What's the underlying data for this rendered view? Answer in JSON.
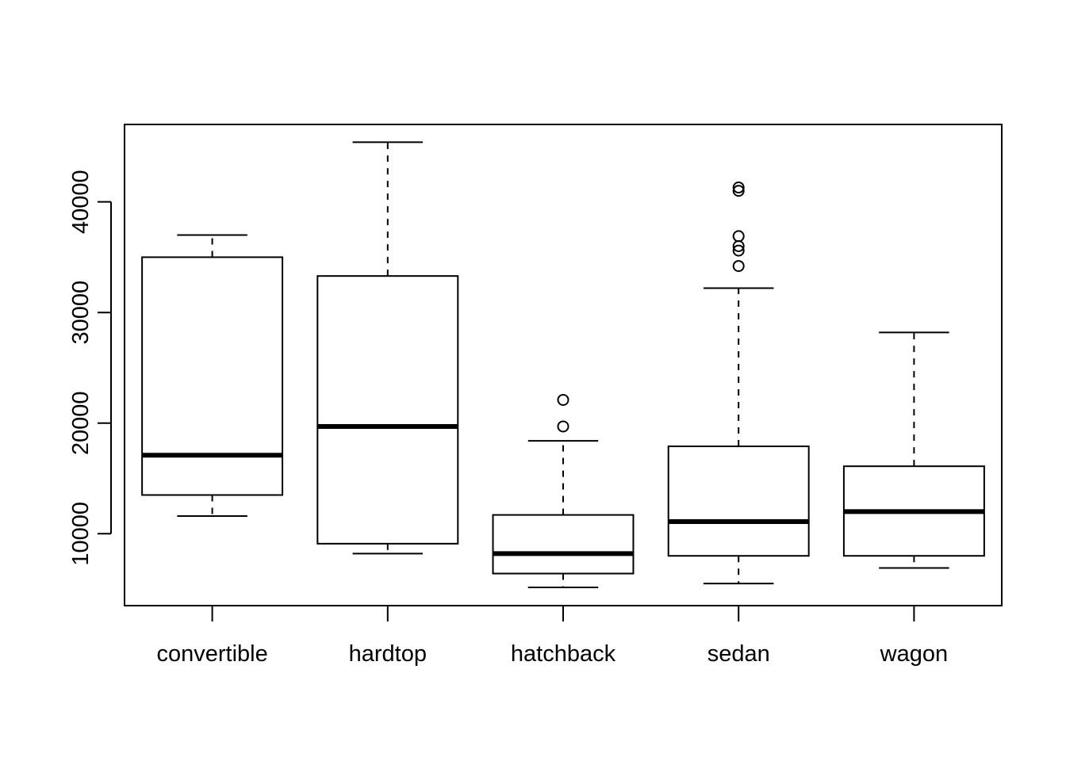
{
  "chart_data": {
    "type": "boxplot",
    "title": "",
    "xlabel": "",
    "ylabel": "",
    "ylim": [
      3500,
      47000
    ],
    "yticks": [
      10000,
      20000,
      30000,
      40000
    ],
    "ytick_labels": [
      "10000",
      "20000",
      "30000",
      "40000"
    ],
    "grid": false,
    "categories": [
      "convertible",
      "hardtop",
      "hatchback",
      "sedan",
      "wagon"
    ],
    "boxes": [
      {
        "category": "convertible",
        "whisker_low": 11600,
        "q1": 13500,
        "median": 17100,
        "q3": 35000,
        "whisker_high": 37000,
        "outliers": []
      },
      {
        "category": "hardtop",
        "whisker_low": 8200,
        "q1": 9100,
        "median": 19700,
        "q3": 33300,
        "whisker_high": 45400,
        "outliers": []
      },
      {
        "category": "hatchback",
        "whisker_low": 5150,
        "q1": 6400,
        "median": 8200,
        "q3": 11700,
        "whisker_high": 18400,
        "outliers": [
          19700,
          22100
        ]
      },
      {
        "category": "sedan",
        "whisker_low": 5500,
        "q1": 8000,
        "median": 11100,
        "q3": 17900,
        "whisker_high": 32200,
        "outliers": [
          34200,
          35600,
          36000,
          36900,
          41000,
          41300
        ]
      },
      {
        "category": "wagon",
        "whisker_low": 6900,
        "q1": 8000,
        "median": 12000,
        "q3": 16100,
        "whisker_high": 28200,
        "outliers": []
      }
    ],
    "colors": {
      "line": "#000000",
      "fill": "#ffffff"
    }
  }
}
